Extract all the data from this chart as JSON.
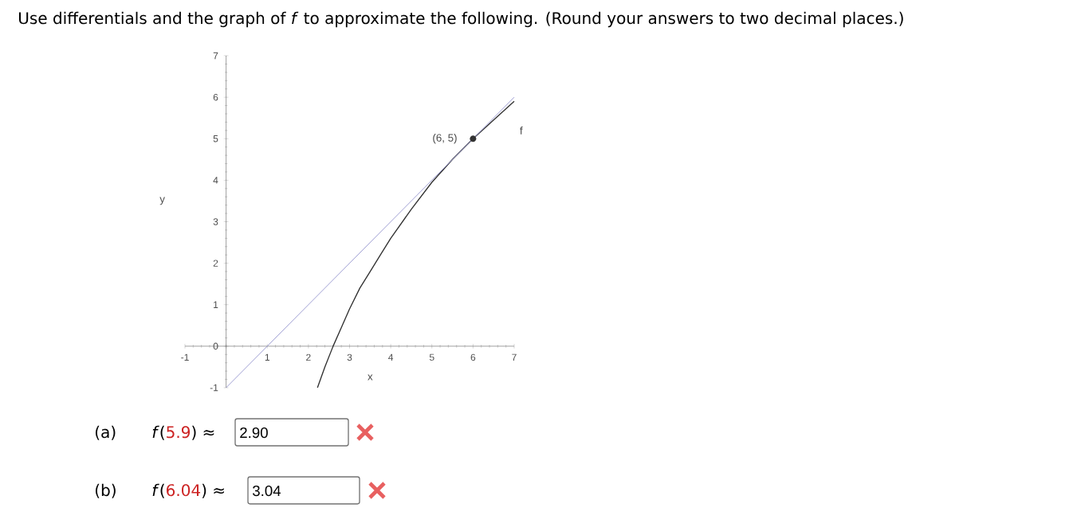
{
  "chart_data": {
    "type": "line",
    "title": "Use differentials and the graph of *f* to approximate the following. (Round your answers to two decimal places.)",
    "xlabel": "x",
    "ylabel": "y",
    "xlim": [
      -1,
      7
    ],
    "ylim": [
      -1,
      7
    ],
    "xticks": [
      -1,
      {
        "value": 0,
        "label": null
      },
      1,
      2,
      3,
      4,
      5,
      6,
      7
    ],
    "yticks": [
      -1,
      0,
      1,
      2,
      3,
      4,
      5,
      6,
      7
    ],
    "grid": false,
    "series": [
      {
        "name": "f",
        "color": "#303030",
        "x": [
          2.22,
          2.4,
          2.6,
          2.8,
          3,
          3.25,
          3.5,
          3.75,
          4,
          4.5,
          5,
          5.5,
          6,
          6.5,
          7
        ],
        "values": [
          -1,
          -0.5,
          0,
          0.45,
          0.9,
          1.4,
          1.8,
          2.2,
          2.6,
          3.3,
          3.95,
          4.5,
          5,
          5.45,
          5.9
        ]
      },
      {
        "color": "#9898d0",
        "x": [
          0,
          7
        ],
        "values": [
          -1,
          6
        ]
      }
    ],
    "annotations": [
      "(a)",
      "*f*(",
      "5.9",
      ") ≈",
      "2.90",
      "(b)",
      "*f*(",
      "6.04",
      ") ≈",
      "3.04",
      {
        "text": "(6, 5)",
        "x": 6,
        "y": 5
      }
    ]
  }
}
